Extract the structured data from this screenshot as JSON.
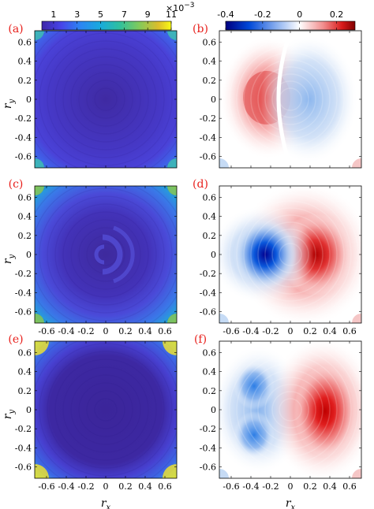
{
  "chart_data": {
    "type": "heatmap",
    "xlabel_main": "r",
    "xlabel_sub": "x",
    "ylabel_main": "r",
    "ylabel_sub": "y",
    "xlim": [
      -0.72,
      0.72
    ],
    "ylim": [
      -0.72,
      0.72
    ],
    "x_ticks": [
      "-0.6",
      "-0.4",
      "-0.2",
      "0",
      "0.2",
      "0.4",
      "0.6"
    ],
    "y_ticks": [
      "-0.6",
      "-0.4",
      "-0.2",
      "0",
      "0.2",
      "0.4",
      "0.6"
    ],
    "colorbars": [
      {
        "name": "left",
        "colormap": "parula",
        "range": [
          0.0,
          0.011
        ],
        "tick_labels": [
          "1",
          "3",
          "5",
          "7",
          "9",
          "11"
        ],
        "exponent": "×10",
        "exponent_power": "−3"
      },
      {
        "name": "right",
        "colormap": "blue-white-red",
        "range": [
          -0.4,
          0.3
        ],
        "tick_labels": [
          "-0.4",
          "-0.2",
          "0",
          "0.2"
        ]
      }
    ],
    "panels": [
      {
        "label": "(a)",
        "colormap": "parula",
        "rows": 0,
        "col": 0
      },
      {
        "label": "(b)",
        "colormap": "blue-white-red",
        "rows": 0,
        "col": 1
      },
      {
        "label": "(c)",
        "colormap": "parula",
        "rows": 1,
        "col": 0
      },
      {
        "label": "(d)",
        "colormap": "blue-white-red",
        "rows": 1,
        "col": 1
      },
      {
        "label": "(e)",
        "colormap": "parula",
        "rows": 2,
        "col": 0
      },
      {
        "label": "(f)",
        "colormap": "blue-white-red",
        "rows": 2,
        "col": 1
      }
    ],
    "panel_x_ticks_shown": [
      "c",
      "d",
      "e",
      "f"
    ],
    "panel_y_ticks_shown": [
      "a",
      "b",
      "c",
      "d",
      "e",
      "f"
    ]
  }
}
